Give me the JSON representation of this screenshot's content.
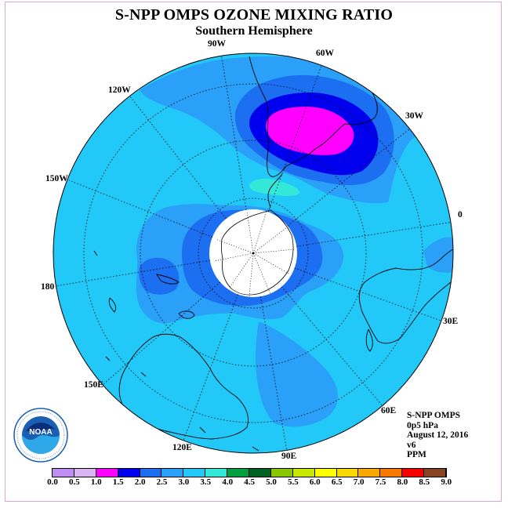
{
  "title": "S-NPP OMPS OZONE MIXING RATIO",
  "subtitle": "Southern Hemisphere",
  "longitude_labels": {
    "w90": "90W",
    "w60": "60W",
    "w30": "30W",
    "w120": "120W",
    "w150": "150W",
    "zero": "0",
    "lon180": "180",
    "e30": "30E",
    "e60": "60E",
    "e90": "90E",
    "e120": "120E",
    "e150": "150E"
  },
  "info": {
    "instrument": "S-NPP OMPS",
    "level": "0p5 hPa",
    "date": "August 12, 2016",
    "version": "v6",
    "units": "PPM"
  },
  "logo": {
    "text": "NOAA",
    "icon": "noaa-logo-icon"
  },
  "colorbar": {
    "ticks": [
      "0.0",
      "0.5",
      "1.0",
      "1.5",
      "2.0",
      "2.5",
      "3.0",
      "3.5",
      "4.0",
      "4.5",
      "5.0",
      "5.5",
      "6.0",
      "6.5",
      "7.0",
      "7.5",
      "8.0",
      "8.5",
      "9.0"
    ],
    "colors": [
      "#c08ef0",
      "#d8b4f0",
      "#ff00ff",
      "#0000ee",
      "#1b6ff0",
      "#2aa0f8",
      "#22c8f8",
      "#33e8d8",
      "#00a040",
      "#006020",
      "#88c800",
      "#c8e800",
      "#ffff00",
      "#f8d800",
      "#f8a800",
      "#f87800",
      "#f80000",
      "#884422"
    ]
  },
  "map": {
    "background_color": "#22c8f8",
    "high_region_color": "#ff00ff",
    "mid_region_color": "#0000ee",
    "low_region_color": "#1b6ff0",
    "teal_patch_color": "#33e8d8",
    "pole_hole_color": "#ffffff"
  }
}
